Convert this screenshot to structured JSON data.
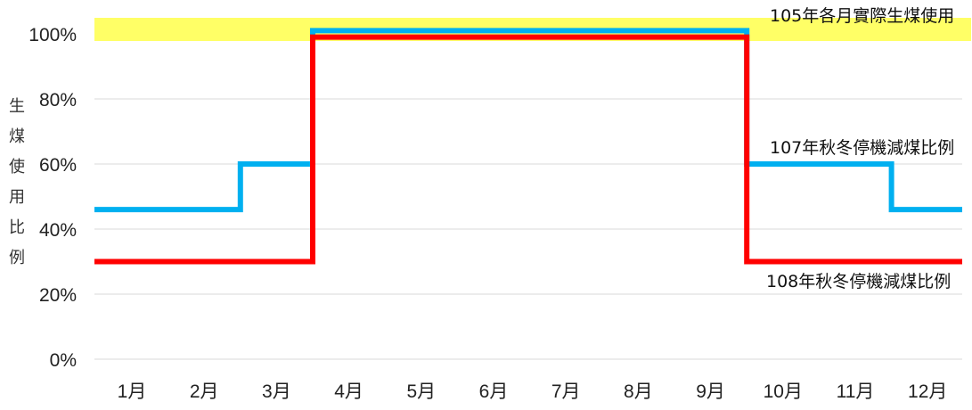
{
  "chart_data": {
    "type": "line",
    "step": true,
    "categories": [
      "1月",
      "2月",
      "3月",
      "4月",
      "5月",
      "6月",
      "7月",
      "8月",
      "9月",
      "10月",
      "11月",
      "12月"
    ],
    "ylabel": "生煤使用比例",
    "ylim": [
      0,
      100
    ],
    "yticks": [
      "0%",
      "20%",
      "40%",
      "60%",
      "80%",
      "100%"
    ],
    "grid": true,
    "band": {
      "label": "105年各月實際生煤使用",
      "value": 100,
      "color": "#ffff66"
    },
    "series": [
      {
        "name": "107年秋冬停機減煤比例",
        "color": "#00b0f0",
        "values": [
          46,
          46,
          60,
          101,
          101,
          101,
          101,
          101,
          101,
          60,
          60,
          46
        ]
      },
      {
        "name": "108年秋冬停機減煤比例",
        "color": "#ff0000",
        "values": [
          30,
          30,
          30,
          99,
          99,
          99,
          99,
          99,
          99,
          30,
          30,
          30
        ]
      }
    ]
  }
}
